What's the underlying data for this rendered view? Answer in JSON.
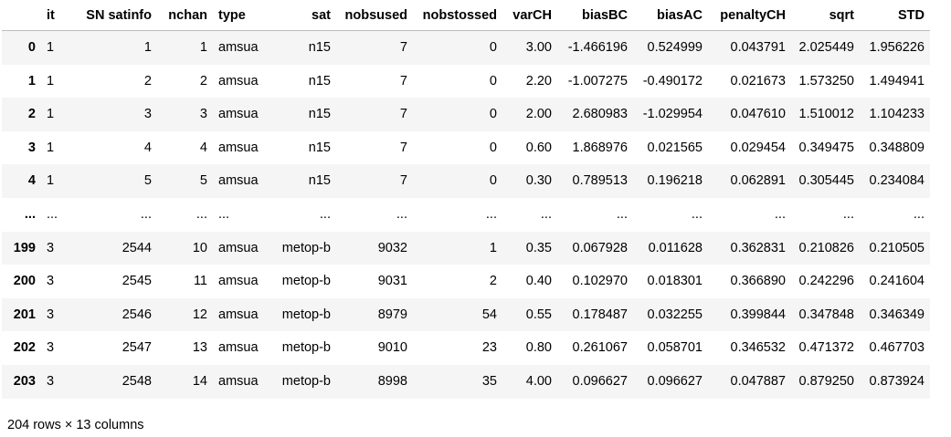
{
  "table": {
    "index_header": "",
    "columns": [
      "it",
      "SN satinfo",
      "nchan",
      "type",
      "sat",
      "nobsused",
      "nobstossed",
      "varCH",
      "biasBC",
      "biasAC",
      "penaltyCH",
      "sqrt",
      "STD"
    ],
    "rows": [
      {
        "index": "0",
        "cells": [
          "1",
          "1",
          "1",
          "amsua",
          "n15",
          "7",
          "0",
          "3.00",
          "-1.466196",
          "0.524999",
          "0.043791",
          "2.025449",
          "1.956226"
        ]
      },
      {
        "index": "1",
        "cells": [
          "1",
          "2",
          "2",
          "amsua",
          "n15",
          "7",
          "0",
          "2.20",
          "-1.007275",
          "-0.490172",
          "0.021673",
          "1.573250",
          "1.494941"
        ]
      },
      {
        "index": "2",
        "cells": [
          "1",
          "3",
          "3",
          "amsua",
          "n15",
          "7",
          "0",
          "2.00",
          "2.680983",
          "-1.029954",
          "0.047610",
          "1.510012",
          "1.104233"
        ]
      },
      {
        "index": "3",
        "cells": [
          "1",
          "4",
          "4",
          "amsua",
          "n15",
          "7",
          "0",
          "0.60",
          "1.868976",
          "0.021565",
          "0.029454",
          "0.349475",
          "0.348809"
        ]
      },
      {
        "index": "4",
        "cells": [
          "1",
          "5",
          "5",
          "amsua",
          "n15",
          "7",
          "0",
          "0.30",
          "0.789513",
          "0.196218",
          "0.062891",
          "0.305445",
          "0.234084"
        ]
      },
      {
        "index": "...",
        "cells": [
          "...",
          "...",
          "...",
          "...",
          "...",
          "...",
          "...",
          "...",
          "...",
          "...",
          "...",
          "...",
          "..."
        ]
      },
      {
        "index": "199",
        "cells": [
          "3",
          "2544",
          "10",
          "amsua",
          "metop-b",
          "9032",
          "1",
          "0.35",
          "0.067928",
          "0.011628",
          "0.362831",
          "0.210826",
          "0.210505"
        ]
      },
      {
        "index": "200",
        "cells": [
          "3",
          "2545",
          "11",
          "amsua",
          "metop-b",
          "9031",
          "2",
          "0.40",
          "0.102970",
          "0.018301",
          "0.366890",
          "0.242296",
          "0.241604"
        ]
      },
      {
        "index": "201",
        "cells": [
          "3",
          "2546",
          "12",
          "amsua",
          "metop-b",
          "8979",
          "54",
          "0.55",
          "0.178487",
          "0.032255",
          "0.399844",
          "0.347848",
          "0.346349"
        ]
      },
      {
        "index": "202",
        "cells": [
          "3",
          "2547",
          "13",
          "amsua",
          "metop-b",
          "9010",
          "23",
          "0.80",
          "0.261067",
          "0.058701",
          "0.346532",
          "0.471372",
          "0.467703"
        ]
      },
      {
        "index": "203",
        "cells": [
          "3",
          "2548",
          "14",
          "amsua",
          "metop-b",
          "8998",
          "35",
          "4.00",
          "0.096627",
          "0.096627",
          "0.047887",
          "0.879250",
          "0.873924"
        ]
      }
    ]
  },
  "footer": {
    "shape_text": "204 rows × 13 columns"
  }
}
